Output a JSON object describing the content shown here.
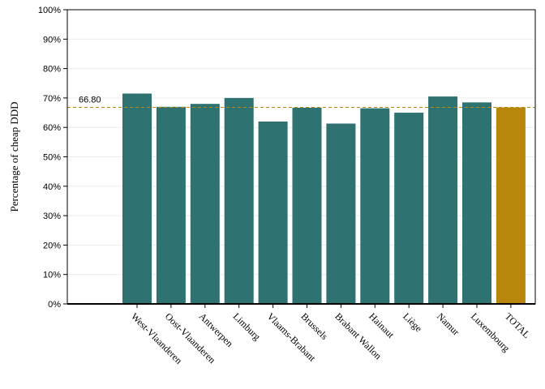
{
  "chart_data": {
    "type": "bar",
    "title": "",
    "xlabel": "",
    "ylabel": "Percentage of cheap DDD",
    "categories": [
      "West-Vlaanderen",
      "Oost-Vlaanderen",
      "Antwerpen",
      "Limburg",
      "Vlaams-Brabant",
      "Brussels",
      "Brabant Wallon",
      "Hainaut",
      "Liège",
      "Namur",
      "Luxembourg",
      "TOTAL"
    ],
    "values": [
      71.5,
      67.0,
      68.0,
      70.0,
      62.0,
      66.7,
      61.3,
      66.5,
      65.0,
      70.5,
      68.5,
      66.8
    ],
    "ylim": [
      0,
      100
    ],
    "yticks": [
      0,
      10,
      20,
      30,
      40,
      50,
      60,
      70,
      80,
      90,
      100
    ],
    "ytick_labels": [
      "0%",
      "10%",
      "20%",
      "30%",
      "40%",
      "50%",
      "60%",
      "70%",
      "80%",
      "90%",
      "100%"
    ],
    "reference_line": {
      "value": 66.8,
      "label": "66.80",
      "style": "dashed",
      "color": "#b8860b"
    },
    "bar_color": "#2e7272",
    "highlight_color": "#b8860b",
    "highlight_category": "TOTAL",
    "grid": true,
    "legend": "none"
  }
}
